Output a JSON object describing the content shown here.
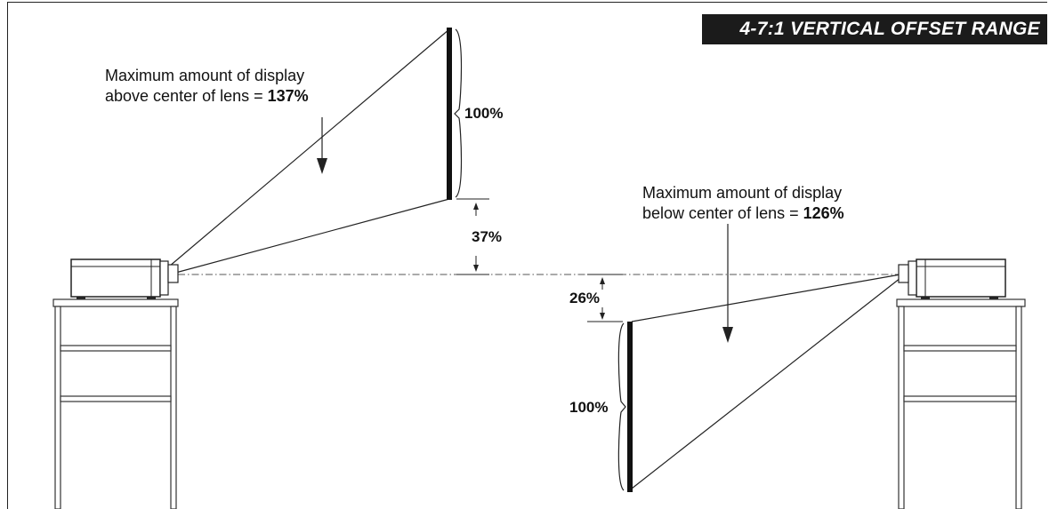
{
  "title": "4-7:1 VERTICAL OFFSET RANGE",
  "left_note": {
    "line1": "Maximum amount of display",
    "line2_prefix": "above center of lens = ",
    "line2_value": "137%"
  },
  "right_note": {
    "line1": "Maximum amount of display",
    "line2_prefix": "below center of lens = ",
    "line2_value": "126%"
  },
  "left_screen_label": "100%",
  "left_offset_label": "37%",
  "right_offset_label": "26%",
  "right_screen_label": "100%"
}
